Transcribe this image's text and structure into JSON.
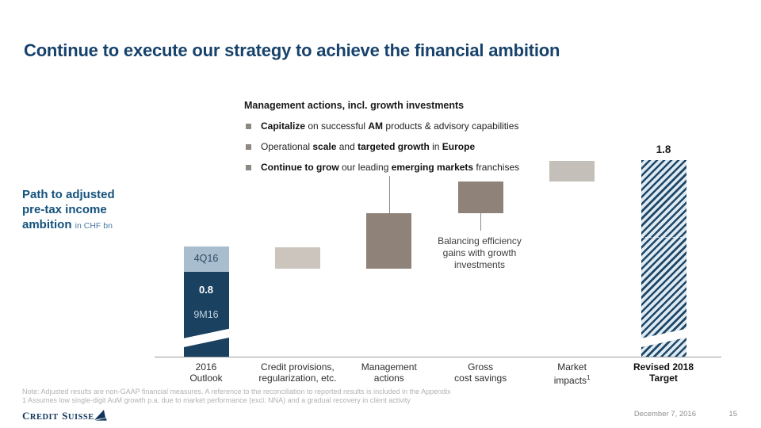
{
  "slide": {
    "title": "Continue to execute our strategy to achieve the financial ambition",
    "footer": {
      "note_line1": "Note: Adjusted results are non-GAAP financial measures. A reference to the reconciliation to reported results is included in the Appendix",
      "note_line2": "1 Assumes low single-digit AuM growth p.a. due to market performance (excl. NNA) and a gradual recovery in client activity",
      "brand_word1_cap": "C",
      "brand_word1_rest": "REDIT",
      "brand_word2_cap": "S",
      "brand_word2_rest": "UISSE",
      "date": "December 7, 2016",
      "page": "15"
    }
  },
  "side_label": {
    "line1": "Path to adjusted",
    "line2": "pre-tax income",
    "line3_bold": "ambition",
    "line3_unit": "in CHF bn"
  },
  "annotation": {
    "header": "Management actions, incl. growth investments",
    "bullets": [
      [
        {
          "t": "Capitalize",
          "b": true
        },
        {
          "t": " on successful ",
          "b": false
        },
        {
          "t": "AM",
          "b": true
        },
        {
          "t": " products & advisory capabilities",
          "b": false
        }
      ],
      [
        {
          "t": "Operational ",
          "b": false
        },
        {
          "t": "scale",
          "b": true
        },
        {
          "t": " and ",
          "b": false
        },
        {
          "t": "targeted growth",
          "b": true
        },
        {
          "t": " in ",
          "b": false
        },
        {
          "t": "Europe",
          "b": true
        }
      ],
      [
        {
          "t": "Continue to grow",
          "b": true
        },
        {
          "t": " our leading ",
          "b": false
        },
        {
          "t": "emerging markets",
          "b": true
        },
        {
          "t": " franchises",
          "b": false
        }
      ]
    ]
  },
  "balancing_note": {
    "lines": [
      "Balancing efficiency",
      "gains with growth",
      "investments"
    ]
  },
  "chart_data": {
    "type": "waterfall",
    "title": "Path to adjusted pre-tax income ambition",
    "unit": "CHF bn",
    "ylim": [
      0,
      2.0
    ],
    "grid": false,
    "categories": [
      "2016 Outlook",
      "Credit provisions, regularization, etc.",
      "Management actions",
      "Gross cost savings",
      "Market impacts",
      "Revised 2018 Target"
    ],
    "axis": [
      {
        "line1": "2016",
        "line2": "Outlook",
        "sup": "",
        "bold": false
      },
      {
        "line1": "Credit provisions,",
        "line2": "regularization, etc.",
        "sup": "",
        "bold": false
      },
      {
        "line1": "Management",
        "line2": "actions",
        "sup": "",
        "bold": false
      },
      {
        "line1": "Gross",
        "line2": "cost savings",
        "sup": "",
        "bold": false
      },
      {
        "line1": "Market",
        "line2": "impacts",
        "sup": "1",
        "bold": false
      },
      {
        "line1": "Revised 2018",
        "line2": "Target",
        "sup": "",
        "bold": true
      }
    ],
    "bars": [
      {
        "name": "bar-2016-outlook-9m16",
        "column": 0,
        "start": 0,
        "end": 0.8,
        "color_key": "navy",
        "text_value": "0.8",
        "text_period": "9M16",
        "break_bottom": true
      },
      {
        "name": "bar-2016-outlook-4q16",
        "column": 0,
        "start": 0.8,
        "end": 1.04,
        "color_key": "lightblue",
        "seg_label": "4Q16"
      },
      {
        "name": "bar-credit-provisions",
        "column": 1,
        "start": 0.83,
        "end": 1.03,
        "color_key": "beige"
      },
      {
        "name": "bar-management-actions",
        "column": 2,
        "start": 0.83,
        "end": 1.35,
        "color_key": "taupe"
      },
      {
        "name": "bar-gross-cost-savings",
        "column": 3,
        "start": 1.35,
        "end": 1.65,
        "color_key": "taupe"
      },
      {
        "name": "bar-market-impacts",
        "column": 4,
        "start": 1.65,
        "end": 1.84,
        "color_key": "lightgray"
      },
      {
        "name": "bar-revised-2018-target",
        "column": 5,
        "start": 0,
        "end": 1.85,
        "color_key": "hatch",
        "value_label": "1.8",
        "break_bottom": true,
        "dashed_line_at": 1.13
      }
    ],
    "connectors": [
      {
        "name": "connector-bullets-to-management-actions",
        "column": 2,
        "y1": 222,
        "y2": 269
      },
      {
        "name": "connector-gross-savings-to-note",
        "column": 3,
        "y1": 269,
        "y2": 291
      }
    ],
    "value_labels_shown": [
      "0.8",
      "1.8",
      "4Q16",
      "9M16"
    ],
    "colors": {
      "navy": "#1A4160",
      "lightblue": "#A8BDCE",
      "beige": "#CCC5BE",
      "taupe": "#8E8279",
      "lightgray": "#C4BFB9",
      "hatch_dark": "#1D4768",
      "hatch_light": "#DEE9F1",
      "accent_title": "#17426B"
    }
  }
}
